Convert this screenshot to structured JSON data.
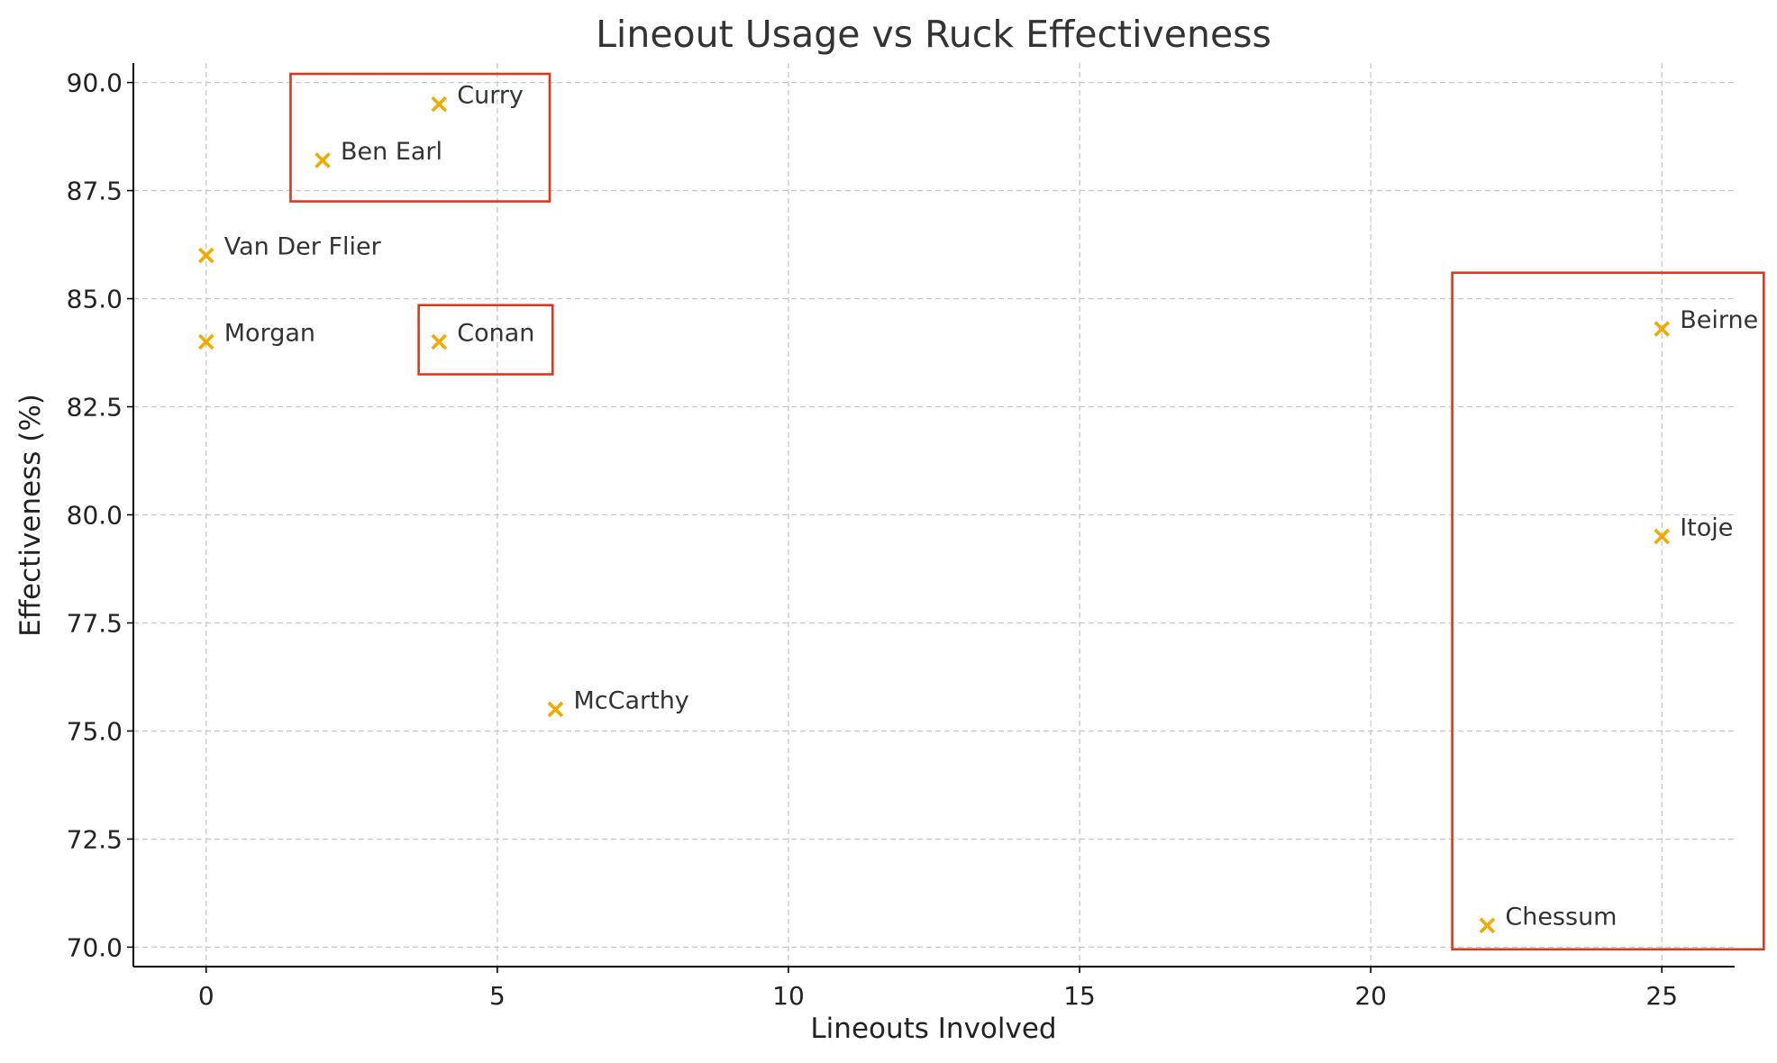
{
  "chart_data": {
    "type": "scatter",
    "title": "Lineout Usage vs Ruck Effectiveness",
    "xlabel": "Lineouts Involved",
    "ylabel": "Effectiveness (%)",
    "xlim": [
      -1.25,
      26.25
    ],
    "ylim": [
      69.55,
      90.45
    ],
    "x_ticks": [
      0,
      5,
      10,
      15,
      20,
      25
    ],
    "y_ticks": [
      70.0,
      72.5,
      75.0,
      77.5,
      80.0,
      82.5,
      85.0,
      87.5,
      90.0
    ],
    "grid": true,
    "marker": "x",
    "marker_color": "#f2a900",
    "highlight_color": "#d93a1c",
    "points": [
      {
        "label": "Curry",
        "x": 4,
        "y": 89.5
      },
      {
        "label": "Ben Earl",
        "x": 2,
        "y": 88.2
      },
      {
        "label": "Van Der Flier",
        "x": 0,
        "y": 86.0
      },
      {
        "label": "Morgan",
        "x": 0,
        "y": 84.0
      },
      {
        "label": "Conan",
        "x": 4,
        "y": 84.0
      },
      {
        "label": "McCarthy",
        "x": 6,
        "y": 75.5
      },
      {
        "label": "Beirne",
        "x": 25,
        "y": 84.3
      },
      {
        "label": "Itoje",
        "x": 25,
        "y": 79.5
      },
      {
        "label": "Chessum",
        "x": 22,
        "y": 70.5
      }
    ],
    "highlight_boxes": [
      {
        "x": [
          1.45,
          5.9
        ],
        "y": [
          87.25,
          90.2
        ]
      },
      {
        "x": [
          3.65,
          5.95
        ],
        "y": [
          83.25,
          84.85
        ]
      },
      {
        "x": [
          21.4,
          26.75
        ],
        "y": [
          69.95,
          85.6
        ]
      }
    ]
  }
}
